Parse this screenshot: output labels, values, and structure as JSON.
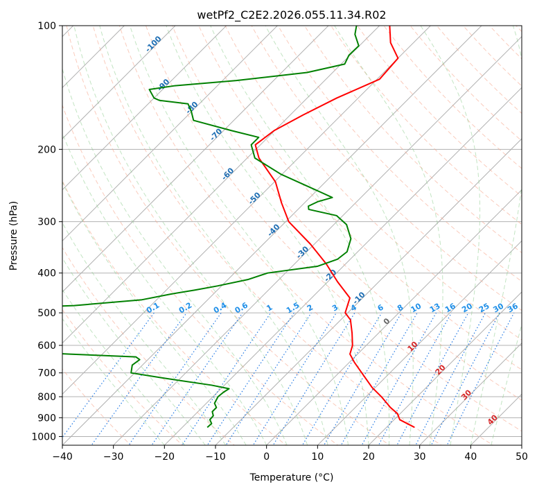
{
  "chart_data": {
    "type": "line",
    "title": "wetPf2_C2E2.2026.055.11.34.R02",
    "xlabel": "Temperature (°C)",
    "ylabel": "Pressure (hPa)",
    "xlim": [
      -40,
      50
    ],
    "ylim": [
      1050,
      100
    ],
    "y_scale": "log",
    "x_ticks": [
      -40,
      -30,
      -20,
      -10,
      0,
      10,
      20,
      30,
      40,
      50
    ],
    "x_tick_labels": [
      "−40",
      "−30",
      "−20",
      "−10",
      "0",
      "10",
      "20",
      "30",
      "40",
      "50"
    ],
    "y_ticks": [
      100,
      200,
      300,
      400,
      500,
      600,
      700,
      800,
      900,
      1000
    ],
    "y_tick_labels": [
      "100",
      "200",
      "300",
      "400",
      "500",
      "600",
      "700",
      "800",
      "900",
      "1000"
    ],
    "grid": true,
    "skew_degrees": 45,
    "isotherm_labels": [
      "-100",
      "-90",
      "-80",
      "-70",
      "-60",
      "-50",
      "-40",
      "-30",
      "-20",
      "-10",
      "0",
      "10",
      "20",
      "30",
      "40"
    ],
    "mixing_ratio_labels": [
      "0.1",
      "0.2",
      "0.4",
      "0.6",
      "1",
      "1.5",
      "2",
      "3",
      "4",
      "6",
      "8",
      "10",
      "13",
      "16",
      "20",
      "25",
      "30",
      "36"
    ],
    "series": [
      {
        "role": "temperature",
        "color": "#ff0000",
        "p": [
          950,
          910,
          880,
          850,
          800,
          760,
          700,
          660,
          630,
          600,
          560,
          520,
          500,
          460,
          420,
          380,
          340,
          300,
          270,
          240,
          210,
          195,
          180,
          165,
          150,
          135,
          120,
          110,
          100
        ],
        "t": [
          25.5,
          21.1,
          19.5,
          16.9,
          13.0,
          9.4,
          4.5,
          1.0,
          -1.5,
          -2.7,
          -5.2,
          -8.1,
          -10.5,
          -12.5,
          -18.1,
          -23.8,
          -30.8,
          -39.4,
          -44.5,
          -49.8,
          -57.7,
          -61.0,
          -60.1,
          -57.5,
          -54.2,
          -49.5,
          -50.0,
          -54.5,
          -58.0
        ]
      },
      {
        "role": "dewpoint",
        "color": "#008000",
        "p": [
          950,
          930,
          910,
          890,
          870,
          850,
          830,
          800,
          780,
          765,
          750,
          720,
          700,
          670,
          650,
          640,
          630,
          615,
          590,
          570,
          560,
          545,
          530,
          520,
          505,
          495,
          487,
          480,
          465,
          450,
          440,
          430,
          415,
          400,
          385,
          370,
          355,
          330,
          305,
          290,
          280,
          275,
          268,
          262,
          255,
          245,
          230,
          210,
          195,
          187,
          180,
          170,
          162,
          155,
          152,
          150,
          143,
          140,
          136,
          130,
          124,
          118,
          112,
          105,
          100
        ],
        "t": [
          -15.1,
          -15.0,
          -16.1,
          -16.2,
          -17.2,
          -17.2,
          -18.4,
          -19.0,
          -18.8,
          -18.4,
          -22.5,
          -33.6,
          -40.7,
          -42.0,
          -41.6,
          -42.9,
          -56.4,
          -79.5,
          -81.0,
          -80.0,
          -78.1,
          -76.5,
          -82.5,
          -75.0,
          -82.5,
          -80.0,
          -77.6,
          -65.0,
          -53.0,
          -48.3,
          -44.4,
          -40.8,
          -36.1,
          -33.5,
          -25.0,
          -22.5,
          -22.1,
          -23.9,
          -27.5,
          -31.2,
          -37.9,
          -38.6,
          -37.6,
          -35.6,
          -38.6,
          -43.1,
          -50.2,
          -58.5,
          -61.8,
          -61.8,
          -68.5,
          -77.9,
          -80.0,
          -82.2,
          -88.5,
          -90.0,
          -92.6,
          -88.3,
          -77.3,
          -65.0,
          -59.3,
          -60.2,
          -60.1,
          -63.1,
          -64.5
        ]
      }
    ]
  }
}
